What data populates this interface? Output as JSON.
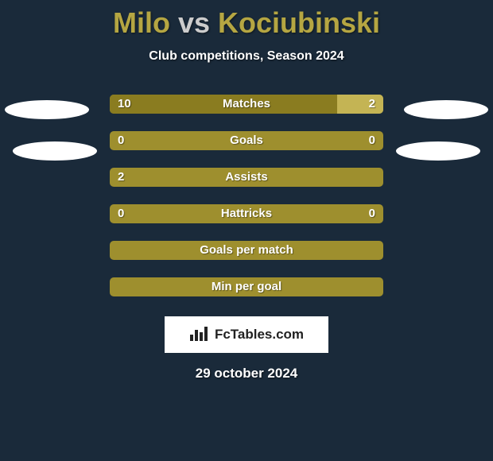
{
  "title": {
    "player1": "Milo",
    "vs": "vs",
    "player2": "Kociubinski"
  },
  "subtitle": "Club competitions, Season 2024",
  "colors": {
    "background": "#1a2a3a",
    "bar_base": "#9e8f2e",
    "bar_dark": "#8a7c20",
    "bar_highlight": "#c4b454",
    "title_accent": "#b5a642",
    "text": "#ffffff"
  },
  "bar_track_width": 344,
  "rows": [
    {
      "label": "Matches",
      "left": "10",
      "right": "2",
      "left_share": 0.83,
      "right_share": 0.17,
      "left_color": "#8a7c20",
      "right_color": "#c4b454",
      "show_vals": true
    },
    {
      "label": "Goals",
      "left": "0",
      "right": "0",
      "left_share": 0.0,
      "right_share": 0.0,
      "left_color": "#8a7c20",
      "right_color": "#c4b454",
      "show_vals": true
    },
    {
      "label": "Assists",
      "left": "2",
      "right": "",
      "left_share": 0.0,
      "right_share": 0.0,
      "left_color": "#8a7c20",
      "right_color": "#c4b454",
      "show_vals": true
    },
    {
      "label": "Hattricks",
      "left": "0",
      "right": "0",
      "left_share": 0.0,
      "right_share": 0.0,
      "left_color": "#8a7c20",
      "right_color": "#c4b454",
      "show_vals": true
    },
    {
      "label": "Goals per match",
      "left": "",
      "right": "",
      "left_share": 0.0,
      "right_share": 0.0,
      "left_color": "#8a7c20",
      "right_color": "#c4b454",
      "show_vals": false
    },
    {
      "label": "Min per goal",
      "left": "",
      "right": "",
      "left_share": 0.0,
      "right_share": 0.0,
      "left_color": "#8a7c20",
      "right_color": "#c4b454",
      "show_vals": false
    }
  ],
  "brand": "FcTables.com",
  "date": "29 october 2024"
}
